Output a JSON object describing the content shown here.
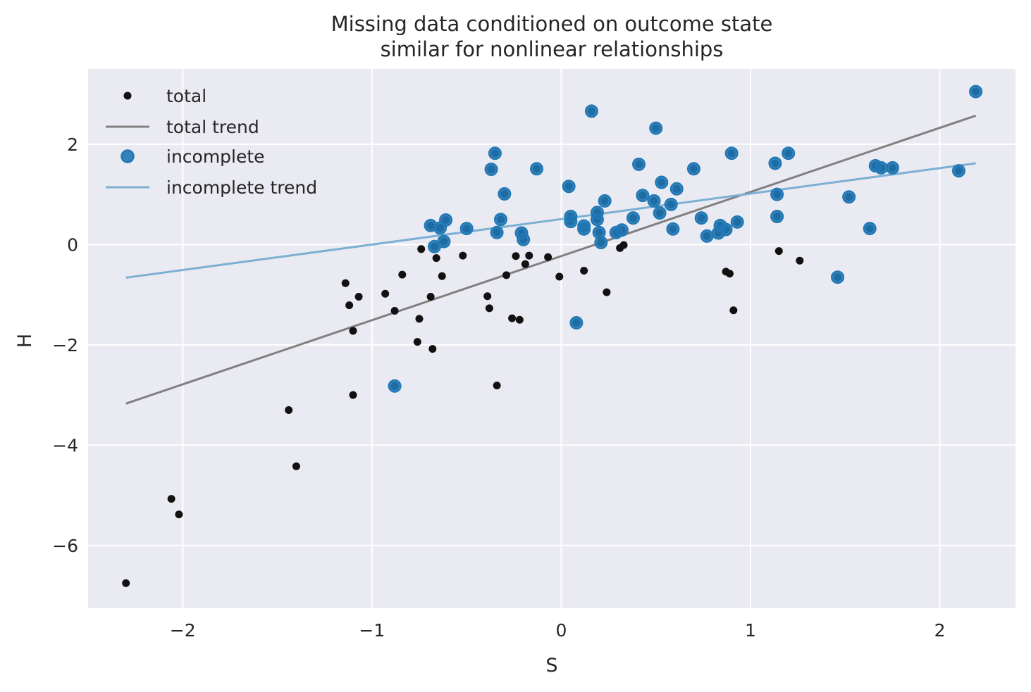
{
  "chart_data": {
    "type": "scatter",
    "title": "Missing data conditioned on outcome state",
    "subtitle": "similar for nonlinear relationships",
    "xlabel": "S",
    "ylabel": "H",
    "xlim": [
      -2.5,
      2.4
    ],
    "ylim": [
      -7.25,
      3.5
    ],
    "xticks": [
      -2,
      -1,
      0,
      1,
      2
    ],
    "yticks": [
      -6,
      -4,
      -2,
      0,
      2
    ],
    "xtick_labels": [
      "−2",
      "−1",
      "0",
      "1",
      "2"
    ],
    "ytick_labels": [
      "−6",
      "−4",
      "−2",
      "0",
      "2"
    ],
    "grid": true,
    "legend_position": "top-left",
    "colors": {
      "background": "#eaeaf2",
      "grid": "#ffffff",
      "total": "#111111",
      "total_trend": "#808080",
      "incomplete_fill": "#1f77b4",
      "incomplete_trend": "#7bafd4"
    },
    "legend": [
      "total",
      "total trend",
      "incomplete",
      "incomplete trend"
    ],
    "series": [
      {
        "name": "total",
        "kind": "scatter",
        "points": [
          [
            -2.3,
            -6.75
          ],
          [
            -2.06,
            -5.07
          ],
          [
            -2.02,
            -5.38
          ],
          [
            -1.44,
            -3.3
          ],
          [
            -1.4,
            -4.42
          ],
          [
            -1.14,
            -0.77
          ],
          [
            -1.12,
            -1.21
          ],
          [
            -1.1,
            -1.72
          ],
          [
            -1.1,
            -3.0
          ],
          [
            -1.07,
            -1.04
          ],
          [
            -0.93,
            -0.98
          ],
          [
            -0.88,
            -1.32
          ],
          [
            -0.84,
            -0.6
          ],
          [
            -0.76,
            -1.94
          ],
          [
            -0.75,
            -1.48
          ],
          [
            -0.74,
            -0.09
          ],
          [
            -0.69,
            -1.04
          ],
          [
            -0.68,
            -2.08
          ],
          [
            -0.66,
            -0.27
          ],
          [
            -0.63,
            -0.63
          ],
          [
            -0.52,
            -0.22
          ],
          [
            -0.39,
            -1.03
          ],
          [
            -0.38,
            -1.27
          ],
          [
            -0.34,
            -2.81
          ],
          [
            -0.29,
            -0.61
          ],
          [
            -0.26,
            -1.47
          ],
          [
            -0.24,
            -0.23
          ],
          [
            -0.22,
            -1.5
          ],
          [
            -0.19,
            -0.39
          ],
          [
            -0.17,
            -0.22
          ],
          [
            -0.07,
            -0.25
          ],
          [
            -0.01,
            -0.64
          ],
          [
            0.12,
            -0.52
          ],
          [
            0.24,
            -0.95
          ],
          [
            0.31,
            -0.07
          ],
          [
            0.33,
            -0.01
          ],
          [
            0.87,
            -0.54
          ],
          [
            0.89,
            -0.58
          ],
          [
            0.91,
            -1.31
          ],
          [
            1.15,
            -0.13
          ],
          [
            1.26,
            -0.32
          ],
          [
            -0.88,
            -2.82
          ],
          [
            -0.69,
            0.38
          ],
          [
            -0.67,
            -0.04
          ],
          [
            -0.64,
            0.33
          ],
          [
            -0.62,
            0.06
          ],
          [
            -0.61,
            0.49
          ],
          [
            -0.5,
            0.32
          ],
          [
            -0.37,
            1.5
          ],
          [
            -0.35,
            1.82
          ],
          [
            -0.34,
            0.24
          ],
          [
            -0.32,
            0.5
          ],
          [
            -0.3,
            1.01
          ],
          [
            -0.21,
            0.23
          ],
          [
            -0.2,
            0.1
          ],
          [
            -0.13,
            1.51
          ],
          [
            0.04,
            1.16
          ],
          [
            0.05,
            0.46
          ],
          [
            0.05,
            0.56
          ],
          [
            0.08,
            -1.56
          ],
          [
            0.12,
            0.31
          ],
          [
            0.12,
            0.37
          ],
          [
            0.16,
            2.66
          ],
          [
            0.19,
            0.5
          ],
          [
            0.19,
            0.64
          ],
          [
            0.2,
            0.24
          ],
          [
            0.21,
            0.04
          ],
          [
            0.23,
            0.87
          ],
          [
            0.29,
            0.24
          ],
          [
            0.32,
            0.29
          ],
          [
            0.38,
            0.53
          ],
          [
            0.41,
            1.6
          ],
          [
            0.43,
            0.98
          ],
          [
            0.49,
            0.87
          ],
          [
            0.5,
            2.32
          ],
          [
            0.52,
            0.63
          ],
          [
            0.53,
            1.24
          ],
          [
            0.58,
            0.8
          ],
          [
            0.59,
            0.31
          ],
          [
            0.61,
            1.11
          ],
          [
            0.7,
            1.51
          ],
          [
            0.74,
            0.53
          ],
          [
            0.77,
            0.17
          ],
          [
            0.83,
            0.23
          ],
          [
            0.84,
            0.38
          ],
          [
            0.87,
            0.3
          ],
          [
            0.9,
            1.82
          ],
          [
            0.93,
            0.45
          ],
          [
            1.13,
            1.62
          ],
          [
            1.14,
            0.56
          ],
          [
            1.14,
            1.0
          ],
          [
            1.2,
            1.82
          ],
          [
            1.46,
            -0.65
          ],
          [
            1.52,
            0.95
          ],
          [
            1.63,
            0.32
          ],
          [
            1.66,
            1.57
          ],
          [
            1.69,
            1.53
          ],
          [
            1.75,
            1.53
          ],
          [
            2.1,
            1.47
          ],
          [
            2.19,
            3.05
          ]
        ]
      },
      {
        "name": "total trend",
        "kind": "line",
        "points": [
          [
            -2.3,
            -3.17
          ],
          [
            2.19,
            2.57
          ]
        ]
      },
      {
        "name": "incomplete",
        "kind": "scatter",
        "points": [
          [
            -0.88,
            -2.82
          ],
          [
            -0.69,
            0.38
          ],
          [
            -0.67,
            -0.04
          ],
          [
            -0.64,
            0.33
          ],
          [
            -0.62,
            0.06
          ],
          [
            -0.61,
            0.49
          ],
          [
            -0.5,
            0.32
          ],
          [
            -0.37,
            1.5
          ],
          [
            -0.35,
            1.82
          ],
          [
            -0.34,
            0.24
          ],
          [
            -0.32,
            0.5
          ],
          [
            -0.3,
            1.01
          ],
          [
            -0.21,
            0.23
          ],
          [
            -0.2,
            0.1
          ],
          [
            -0.13,
            1.51
          ],
          [
            0.04,
            1.16
          ],
          [
            0.05,
            0.46
          ],
          [
            0.05,
            0.56
          ],
          [
            0.08,
            -1.56
          ],
          [
            0.12,
            0.31
          ],
          [
            0.12,
            0.37
          ],
          [
            0.16,
            2.66
          ],
          [
            0.19,
            0.5
          ],
          [
            0.19,
            0.64
          ],
          [
            0.2,
            0.24
          ],
          [
            0.21,
            0.04
          ],
          [
            0.23,
            0.87
          ],
          [
            0.29,
            0.24
          ],
          [
            0.32,
            0.29
          ],
          [
            0.38,
            0.53
          ],
          [
            0.41,
            1.6
          ],
          [
            0.43,
            0.98
          ],
          [
            0.49,
            0.87
          ],
          [
            0.5,
            2.32
          ],
          [
            0.52,
            0.63
          ],
          [
            0.53,
            1.24
          ],
          [
            0.58,
            0.8
          ],
          [
            0.59,
            0.31
          ],
          [
            0.61,
            1.11
          ],
          [
            0.7,
            1.51
          ],
          [
            0.74,
            0.53
          ],
          [
            0.77,
            0.17
          ],
          [
            0.83,
            0.23
          ],
          [
            0.84,
            0.38
          ],
          [
            0.87,
            0.3
          ],
          [
            0.9,
            1.82
          ],
          [
            0.93,
            0.45
          ],
          [
            1.13,
            1.62
          ],
          [
            1.14,
            0.56
          ],
          [
            1.14,
            1.0
          ],
          [
            1.2,
            1.82
          ],
          [
            1.46,
            -0.65
          ],
          [
            1.52,
            0.95
          ],
          [
            1.63,
            0.32
          ],
          [
            1.66,
            1.57
          ],
          [
            1.69,
            1.53
          ],
          [
            1.75,
            1.53
          ],
          [
            2.1,
            1.47
          ],
          [
            2.19,
            3.05
          ]
        ]
      },
      {
        "name": "incomplete trend",
        "kind": "line",
        "points": [
          [
            -2.3,
            -0.66
          ],
          [
            2.19,
            1.62
          ]
        ]
      }
    ]
  }
}
